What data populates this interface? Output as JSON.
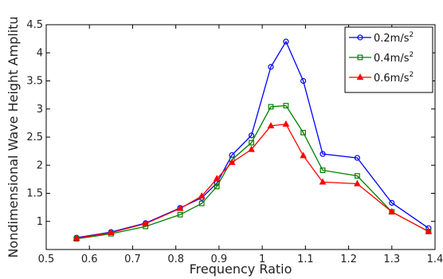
{
  "chart_data": {
    "type": "line",
    "xlabel": "Frequency Ratio",
    "ylabel": "Nondimensional Wave Height Amplitu",
    "xlim": [
      0.5,
      1.4
    ],
    "ylim": [
      0.5,
      4.5
    ],
    "xticks": [
      "0.5",
      "0.6",
      "0.7",
      "0.8",
      "0.9",
      "1",
      "1.1",
      "1.2",
      "1.3",
      "1.4"
    ],
    "yticks": [
      "1",
      "1.5",
      "2",
      "2.5",
      "3",
      "3.5",
      "4",
      "4.5"
    ],
    "grid": false,
    "legend_position": "top-right",
    "x": [
      0.57,
      0.65,
      0.73,
      0.81,
      0.86,
      0.895,
      0.93,
      0.975,
      1.02,
      1.055,
      1.095,
      1.14,
      1.22,
      1.3,
      1.385
    ],
    "series": [
      {
        "name": "0.2m/s",
        "name_superscript": "2",
        "color": "#0000ff",
        "marker": "circle",
        "values": [
          0.71,
          0.81,
          0.97,
          1.24,
          1.42,
          1.68,
          2.18,
          2.53,
          3.75,
          4.2,
          3.5,
          2.2,
          2.13,
          1.33,
          0.88
        ]
      },
      {
        "name": "0.4m/s",
        "name_superscript": "2",
        "color": "#008000",
        "marker": "square",
        "values": [
          0.69,
          0.78,
          0.91,
          1.12,
          1.32,
          1.62,
          2.1,
          2.4,
          3.04,
          3.06,
          2.58,
          1.91,
          1.81,
          1.17,
          0.82
        ]
      },
      {
        "name": "0.6m/s",
        "name_superscript": "2",
        "color": "#ff0000",
        "marker": "triangle",
        "values": [
          0.7,
          0.8,
          0.96,
          1.23,
          1.45,
          1.76,
          2.05,
          2.28,
          2.7,
          2.73,
          2.17,
          1.7,
          1.67,
          1.17,
          0.82
        ]
      }
    ]
  }
}
